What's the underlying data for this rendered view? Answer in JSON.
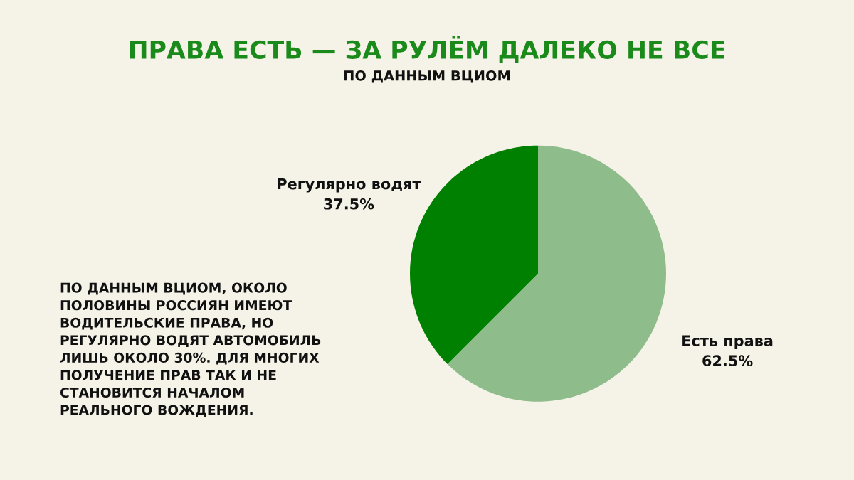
{
  "chart_data": {
    "type": "pie",
    "title": "ПРАВА ЕСТЬ — ЗА РУЛЁМ ДАЛЕКО НЕ ВСЕ",
    "subtitle": "ПО ДАННЫМ ВЦИОМ",
    "categories": [
      "Есть права",
      "Регулярно водят"
    ],
    "values": [
      62.5,
      37.5
    ],
    "value_labels": [
      "62.5%",
      "37.5%"
    ],
    "colors": [
      "#8fbc8b",
      "#008000"
    ],
    "annotations": [
      "ПО ДАННЫМ ВЦИОМ, ОКОЛО\nПОЛОВИНЫ РОССИЯН ИМЕЮТ\nВОДИТЕЛЬСКИЕ ПРАВА, НО\nРЕГУЛЯРНО ВОДЯТ АВТОМОБИЛЬ\nЛИШЬ ОКОЛО 30%. ДЛЯ МНОГИХ\nПОЛУЧЕНИЕ ПРАВ ТАК И НЕ\nСТАНОВИТСЯ НАЧАЛОМ\nРЕАЛЬНОГО ВОЖДЕНИЯ."
    ],
    "legend": false
  }
}
